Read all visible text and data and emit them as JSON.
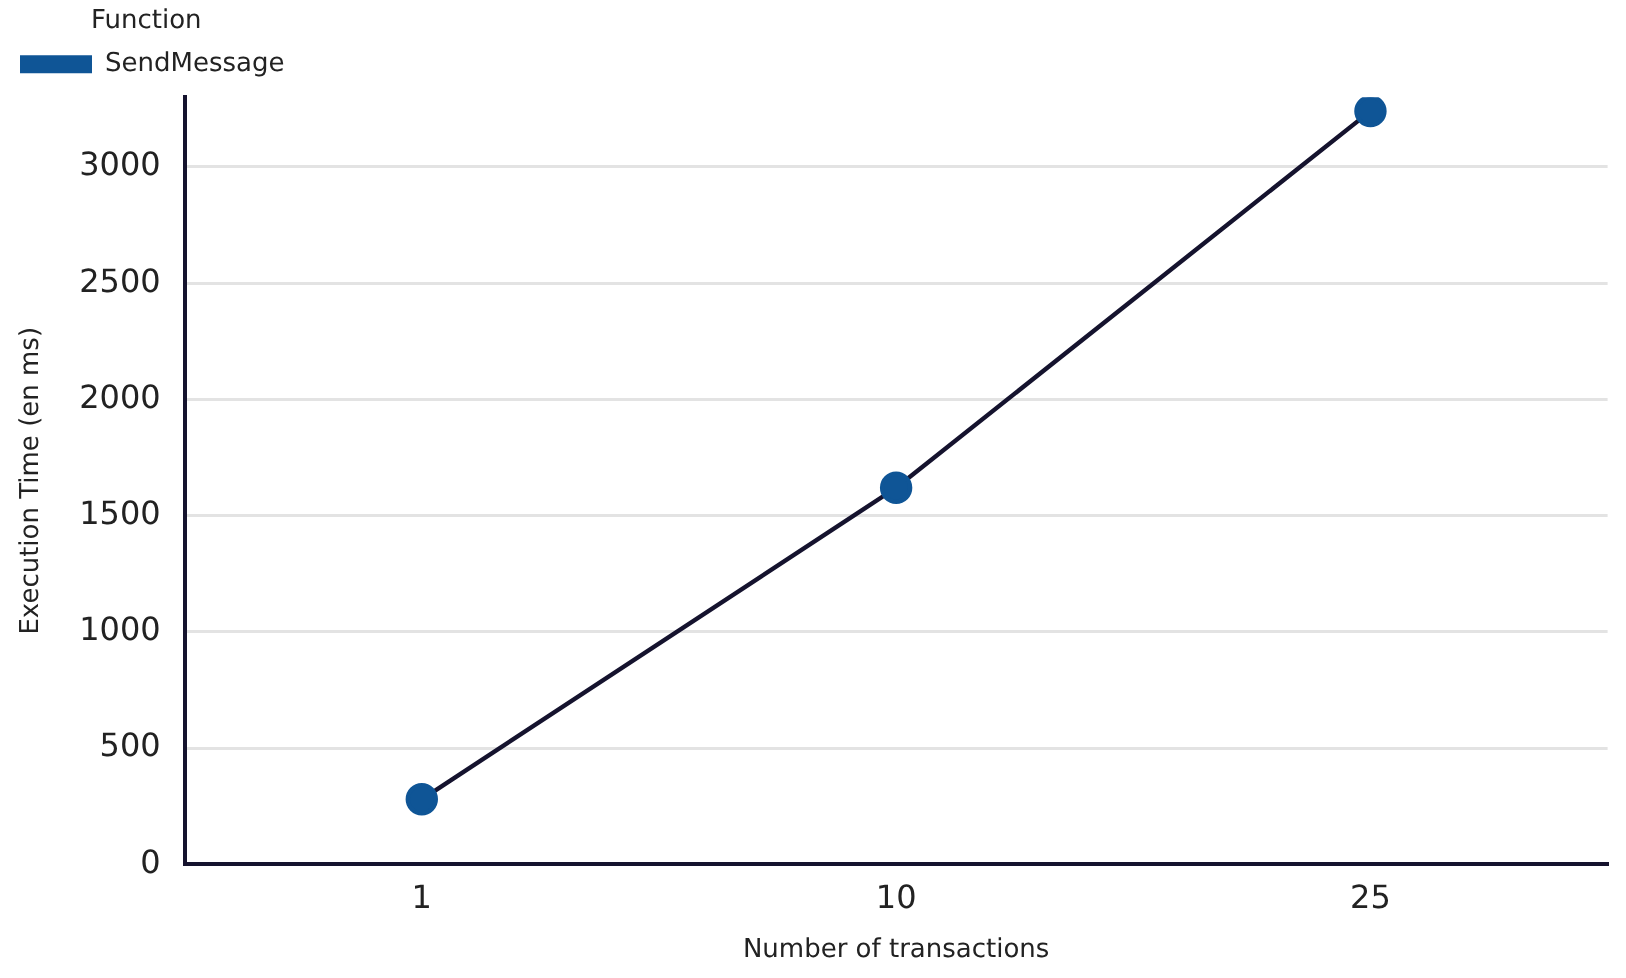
{
  "chart_data": {
    "type": "line",
    "xlabel": "Number of transactions",
    "ylabel": "Execution Time (en ms)",
    "legend_title": "Function",
    "categories": [
      "1",
      "10",
      "25"
    ],
    "series": [
      {
        "name": "SendMessage",
        "color": "#0f5596",
        "values": [
          280,
          1620,
          3240
        ]
      }
    ],
    "ylim": [
      0,
      3300
    ],
    "yticks": [
      0,
      500,
      1000,
      1500,
      2000,
      2500,
      3000
    ],
    "grid": "y",
    "legend": "top left",
    "marker": "circle",
    "line_style": "solid"
  }
}
